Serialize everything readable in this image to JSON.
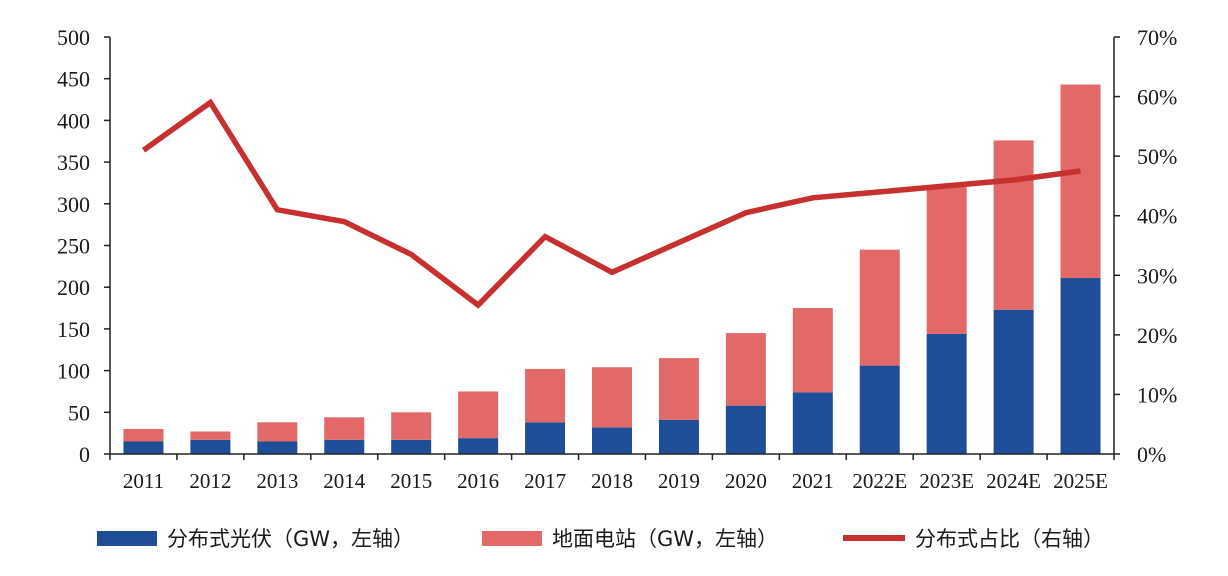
{
  "chart_data": {
    "type": "bar",
    "stacked": true,
    "categories": [
      "2011",
      "2012",
      "2013",
      "2014",
      "2015",
      "2016",
      "2017",
      "2018",
      "2019",
      "2020",
      "2021",
      "2022E",
      "2023E",
      "2024E",
      "2025E"
    ],
    "series": [
      {
        "name": "分布式光伏（GW，左轴）",
        "kind": "bar",
        "axis": "left",
        "color": "#1f4e99",
        "values": [
          15,
          17,
          15,
          17,
          17,
          19,
          38,
          32,
          41,
          58,
          74,
          106,
          144,
          173,
          211
        ]
      },
      {
        "name": "地面电站（GW，左轴）",
        "kind": "bar",
        "axis": "left",
        "color": "#e36868",
        "values": [
          15,
          10,
          23,
          27,
          33,
          56,
          64,
          72,
          74,
          87,
          101,
          139,
          176,
          203,
          232
        ]
      },
      {
        "name": "分布式占比（右轴）",
        "kind": "line",
        "axis": "right",
        "color": "#c82f2f",
        "values": [
          0.51,
          0.59,
          0.41,
          0.39,
          0.335,
          0.25,
          0.365,
          0.305,
          0.355,
          0.405,
          0.43,
          0.44,
          0.45,
          0.46,
          0.475
        ]
      }
    ],
    "y_left": {
      "lim": [
        0,
        500
      ],
      "ticks": [
        "0",
        "50",
        "100",
        "150",
        "200",
        "250",
        "300",
        "350",
        "400",
        "450",
        "500"
      ]
    },
    "y_right": {
      "lim": [
        0,
        0.7
      ],
      "ticks": [
        "0%",
        "10%",
        "20%",
        "30%",
        "40%",
        "50%",
        "60%",
        "70%"
      ]
    },
    "grid": false,
    "legend_position": "bottom"
  }
}
